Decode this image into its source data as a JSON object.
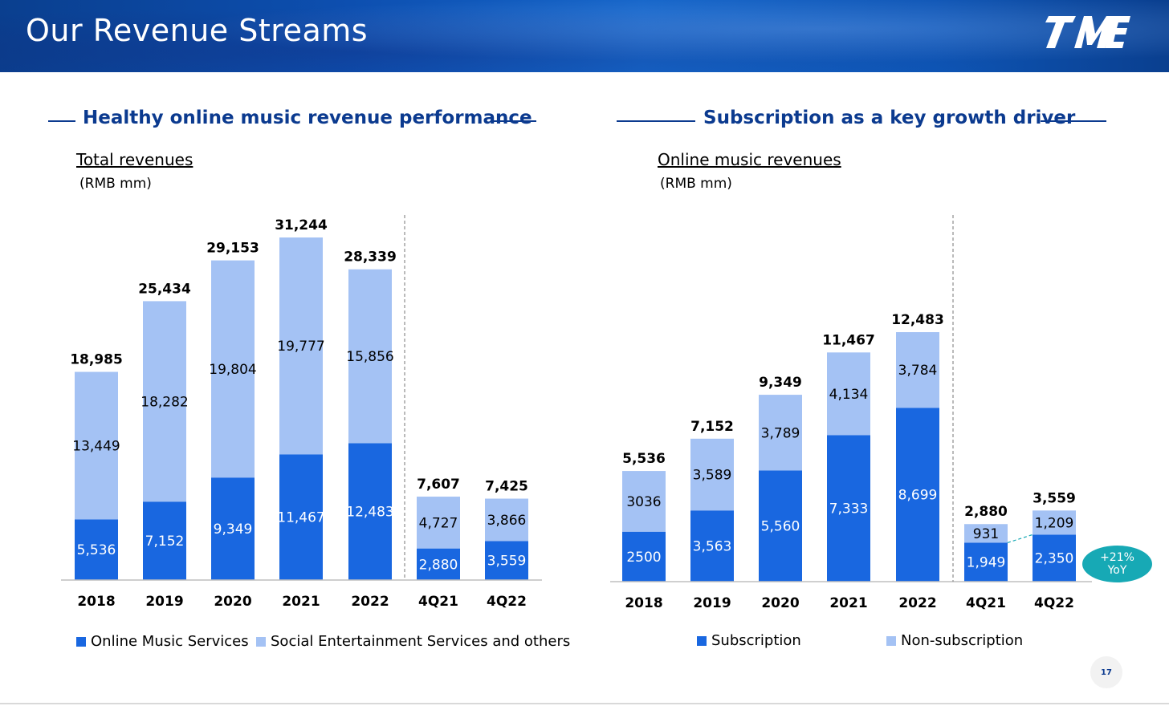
{
  "header": {
    "title": "Our Revenue Streams",
    "logo_icon": "tme-logo"
  },
  "colors": {
    "dark_series": "#1967e0",
    "light_series": "#a4c2f4",
    "heading": "#0b3a8f",
    "yoy_bubble": "#17a9b5"
  },
  "left": {
    "heading": "Healthy online music revenue performance",
    "subtitle": "Total revenues",
    "units": "(RMB mm)",
    "legend": [
      "Online Music Services",
      "Social Entertainment Services and others"
    ]
  },
  "right": {
    "heading": "Subscription as a key growth driver",
    "subtitle": "Online music revenues",
    "units": "(RMB mm)",
    "legend": [
      "Subscription",
      "Non-subscription"
    ],
    "yoy_line1": "+21%",
    "yoy_line2": "YoY"
  },
  "page_number": "17",
  "chart_data": [
    {
      "type": "bar",
      "stacked": true,
      "title": "Total revenues",
      "unit": "(RMB mm)",
      "categories": [
        "2018",
        "2019",
        "2020",
        "2021",
        "2022",
        "4Q21",
        "4Q22"
      ],
      "series": [
        {
          "name": "Online Music Services",
          "values": [
            5536,
            7152,
            9349,
            11467,
            12483,
            2880,
            3559
          ],
          "labels": [
            "5,536",
            "7,152",
            "9,349",
            "11,467",
            "12,483",
            "2,880",
            "3,559"
          ]
        },
        {
          "name": "Social Entertainment Services and others",
          "values": [
            13449,
            18282,
            19804,
            19777,
            15856,
            4727,
            3866
          ],
          "labels": [
            "13,449",
            "18,282",
            "19,804",
            "19,777",
            "15,856",
            "4,727",
            "3,866"
          ]
        }
      ],
      "totals": [
        "18,985",
        "25,434",
        "29,153",
        "31,244",
        "28,339",
        "7,607",
        "7,425"
      ],
      "divider_after_index": 4,
      "ylim": [
        0,
        31244
      ],
      "legend_position": "bottom"
    },
    {
      "type": "bar",
      "stacked": true,
      "title": "Online music revenues",
      "unit": "(RMB mm)",
      "categories": [
        "2018",
        "2019",
        "2020",
        "2021",
        "2022",
        "4Q21",
        "4Q22"
      ],
      "series": [
        {
          "name": "Subscription",
          "values": [
            2500,
            3563,
            5560,
            7333,
            8699,
            1949,
            2350
          ],
          "labels": [
            "2500",
            "3,563",
            "5,560",
            "7,333",
            "8,699",
            "1,949",
            "2,350"
          ]
        },
        {
          "name": "Non-subscription",
          "values": [
            3036,
            3589,
            3789,
            4134,
            3784,
            931,
            1209
          ],
          "labels": [
            "3036",
            "3,589",
            "3,789",
            "4,134",
            "3,784",
            "931",
            "1,209"
          ]
        }
      ],
      "totals": [
        "5,536",
        "7,152",
        "9,349",
        "11,467",
        "12,483",
        "2,880",
        "3,559"
      ],
      "divider_after_index": 4,
      "ylim": [
        0,
        12483
      ],
      "legend_position": "bottom"
    }
  ]
}
